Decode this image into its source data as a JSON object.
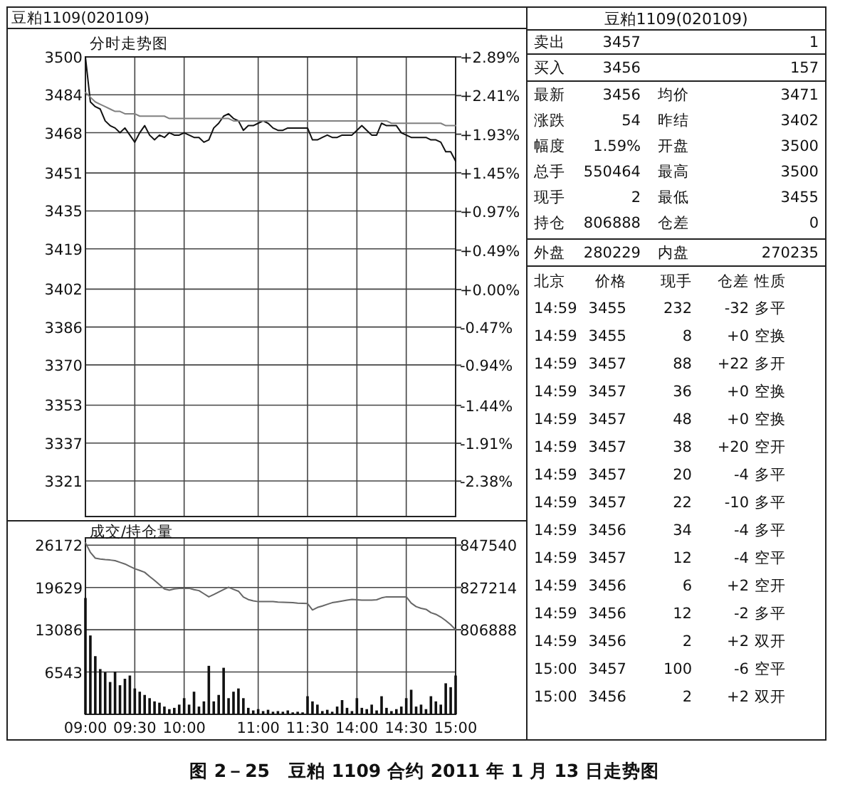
{
  "chart_data": [
    {
      "type": "line",
      "title": "豆粕1109(020109)",
      "subtitle": "分时走势图",
      "categories": [
        null,
        null,
        null,
        null,
        null,
        null,
        null,
        null,
        null,
        null,
        null,
        null,
        null,
        null,
        null,
        null,
        null,
        null,
        null,
        null,
        null,
        null,
        null,
        null,
        null,
        null,
        null,
        null,
        null,
        null,
        null,
        null,
        null,
        null,
        null,
        null,
        null,
        null,
        null,
        null,
        null,
        null,
        null,
        null,
        null,
        null,
        null,
        null,
        null,
        null,
        null,
        null,
        null,
        null,
        null,
        null,
        null,
        null,
        null,
        null,
        null,
        null,
        null,
        null,
        null,
        null,
        null,
        null,
        null,
        null,
        null,
        null,
        null,
        null,
        null,
        null
      ],
      "ylim": [
        3306,
        3500
      ],
      "yticks": [
        3500,
        3484,
        3468,
        3451,
        3435,
        3419,
        3402,
        3386,
        3370,
        3353,
        3337,
        3321
      ],
      "y2lim": [
        -2.82,
        2.89
      ],
      "y2ticks": [
        {
          "value": 2.89,
          "label": "+2.89%"
        },
        {
          "value": 2.41,
          "label": "+2.41%"
        },
        {
          "value": 1.93,
          "label": "+1.93%"
        },
        {
          "value": 1.45,
          "label": "+1.45%"
        },
        {
          "value": 0.97,
          "label": "+0.97%"
        },
        {
          "value": 0.49,
          "label": "+0.49%"
        },
        {
          "value": 0,
          "label": "+0.00%"
        },
        {
          "value": -0.47,
          "label": "-0.47%"
        },
        {
          "value": -0.94,
          "label": "-0.94%"
        },
        {
          "value": -1.44,
          "label": "-1.44%"
        },
        {
          "value": -1.91,
          "label": "-1.91%"
        },
        {
          "value": -2.38,
          "label": "-2.38%"
        }
      ],
      "tick_labels": "y",
      "grid": true,
      "series": [
        {
          "color": "#111111",
          "values": [
            3500,
            3481,
            3479,
            3478,
            3473,
            3471,
            3470,
            3468,
            3470,
            3467,
            3464,
            3468,
            3471,
            3467,
            3465,
            3467,
            3466,
            3468,
            3467,
            3467,
            3468,
            3467,
            3466,
            3466,
            3464,
            3465,
            3470,
            3472,
            3475,
            3476,
            3474,
            3473,
            3469,
            3471,
            3471,
            3472,
            3473,
            3472,
            3470,
            3469,
            3469,
            3470,
            3470,
            3470,
            3470,
            3470,
            3465,
            3465,
            3466,
            3467,
            3466,
            3466,
            3467,
            3467,
            3467,
            3469,
            3471,
            3469,
            3467,
            3467,
            3472,
            3471,
            3471,
            3471,
            3468,
            3467,
            3466,
            3466,
            3466,
            3466,
            3465,
            3465,
            3464,
            3460,
            3460,
            3456
          ]
        },
        {
          "color": "#808080",
          "values": [
            3485,
            3483,
            3481,
            3480,
            3479,
            3478,
            3477,
            3477,
            3476,
            3476,
            3476,
            3475,
            3475,
            3475,
            3475,
            3475,
            3475,
            3474,
            3474,
            3474,
            3474,
            3474,
            3474,
            3474,
            3474,
            3474,
            3474,
            3474,
            3474,
            3474,
            3473,
            3473,
            3473,
            3473,
            3473,
            3473,
            3473,
            3473,
            3473,
            3473,
            3473,
            3473,
            3473,
            3473,
            3473,
            3473,
            3473,
            3473,
            3473,
            3473,
            3473,
            3473,
            3473,
            3473,
            3473,
            3473,
            3473,
            3473,
            3473,
            3473,
            3473,
            3473,
            3472,
            3472,
            3472,
            3472,
            3472,
            3472,
            3472,
            3472,
            3472,
            3472,
            3472,
            3471,
            3471,
            3471
          ]
        }
      ]
    },
    {
      "type": "bar",
      "title": "成交/持仓量",
      "categories": [
        "09:00",
        null,
        null,
        null,
        null,
        null,
        null,
        null,
        null,
        null,
        "09:30",
        null,
        null,
        null,
        null,
        null,
        null,
        null,
        null,
        null,
        "10:00",
        null,
        null,
        null,
        null,
        null,
        null,
        null,
        null,
        null,
        null,
        null,
        null,
        null,
        null,
        "11:00",
        null,
        null,
        null,
        null,
        null,
        null,
        null,
        null,
        null,
        "11:30",
        null,
        null,
        null,
        null,
        null,
        null,
        null,
        null,
        null,
        "14:00",
        null,
        null,
        null,
        null,
        null,
        null,
        null,
        null,
        null,
        "14:30",
        null,
        null,
        null,
        null,
        null,
        null,
        null,
        null,
        null,
        "15:00"
      ],
      "ylim": [
        0,
        27300
      ],
      "yticks": [
        6543,
        13086,
        19629,
        26172
      ],
      "y2lim": [
        766236,
        851044
      ],
      "y2ticks": [
        806888,
        827214,
        847540
      ],
      "grid": true,
      "series": [
        {
          "type": "bar",
          "color": "#111111",
          "values": [
            18000,
            12200,
            9000,
            7000,
            6500,
            5000,
            6600,
            4500,
            5500,
            6000,
            4000,
            3500,
            3000,
            2500,
            2000,
            1800,
            1200,
            800,
            1000,
            1500,
            2500,
            1500,
            3500,
            1200,
            2000,
            7500,
            2000,
            3000,
            7200,
            2500,
            3500,
            4000,
            2500,
            1000,
            600,
            800,
            500,
            700,
            400,
            500,
            400,
            600,
            300,
            400,
            300,
            2800,
            2000,
            1500,
            500,
            700,
            400,
            1200,
            2200,
            1000,
            500,
            2500,
            1000,
            800,
            1500,
            600,
            2800,
            1000,
            500,
            800,
            1200,
            2500,
            3800,
            1200,
            1500,
            800,
            2800,
            2000,
            1500,
            4800,
            4200,
            6000
          ]
        },
        {
          "type": "line",
          "axis": "y2",
          "color": "#666666",
          "values": [
            848700,
            844100,
            841300,
            840900,
            840600,
            840400,
            840100,
            839300,
            838500,
            837300,
            836200,
            835400,
            834500,
            832500,
            830600,
            828600,
            826500,
            825900,
            826500,
            826800,
            826800,
            826800,
            826200,
            825700,
            824200,
            822700,
            823800,
            825000,
            826200,
            827300,
            826300,
            825400,
            822600,
            821400,
            820800,
            820400,
            820400,
            820400,
            820400,
            820200,
            820100,
            820000,
            819900,
            819700,
            819600,
            819500,
            816400,
            817600,
            818300,
            819100,
            819900,
            820300,
            820700,
            821100,
            821500,
            821300,
            821100,
            821100,
            821100,
            821300,
            822200,
            822700,
            822700,
            822700,
            822700,
            822700,
            819700,
            818000,
            817200,
            816700,
            815100,
            814300,
            813000,
            811300,
            809300,
            806900
          ]
        }
      ],
      "annotations": [
        "图 2－25　豆粕 1109 合约 2011 年 1 月 13 日走势图"
      ]
    },
    {
      "type": "other",
      "title": "豆粕1109(020109)",
      "annotations": [
        "卖出",
        "3457",
        "1",
        "买入",
        "3456",
        "157",
        "最新",
        "3456",
        "均价",
        "3471",
        "涨跌",
        "54",
        "昨结",
        "3402",
        "幅度",
        "1.59%",
        "开盘",
        "3500",
        "总手",
        "550464",
        "最高",
        "3500",
        "现手",
        "2",
        "最低",
        "3455",
        "持仓",
        "806888",
        "仓差",
        "0",
        "外盘",
        "280229",
        "内盘",
        "270235",
        "北京",
        "价格",
        "现手",
        "仓差",
        "性质",
        "14:59",
        "3455",
        "232",
        "-32",
        "多平",
        "14:59",
        "3455",
        "8",
        "+0",
        "空换",
        "14:59",
        "3457",
        "88",
        "+22",
        "多开",
        "14:59",
        "3457",
        "36",
        "+0",
        "空换",
        "14:59",
        "3457",
        "48",
        "+0",
        "空换",
        "14:59",
        "3457",
        "38",
        "+20",
        "空开",
        "14:59",
        "3457",
        "20",
        "-4",
        "多平",
        "14:59",
        "3457",
        "22",
        "-10",
        "多平",
        "14:59",
        "3456",
        "34",
        "-4",
        "多平",
        "14:59",
        "3457",
        "12",
        "-4",
        "空平",
        "14:59",
        "3456",
        "6",
        "+2",
        "空开",
        "14:59",
        "3456",
        "12",
        "-2",
        "多平",
        "14:59",
        "3456",
        "2",
        "+2",
        "双开",
        "15:00",
        "3457",
        "100",
        "-6",
        "空平",
        "15:00",
        "3456",
        "2",
        "+2",
        "双开"
      ]
    }
  ]
}
